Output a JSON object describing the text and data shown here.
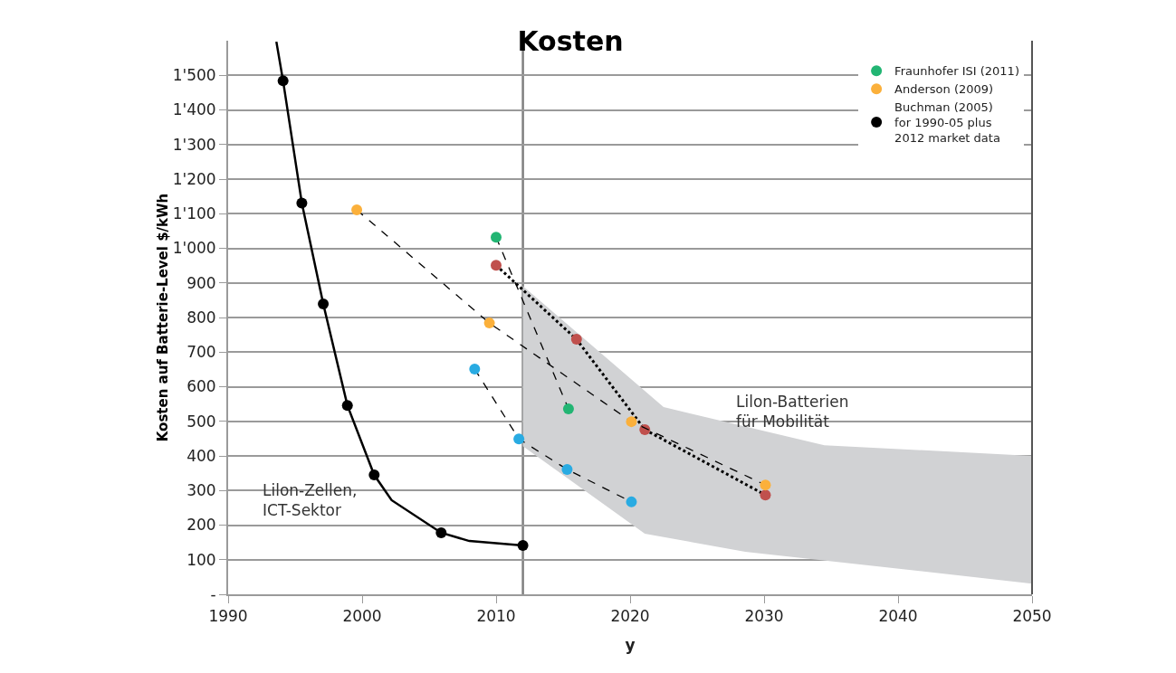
{
  "chart_data": {
    "type": "scatter",
    "title": "Kosten",
    "xlabel": "y",
    "ylabel": "Kosten auf Batterie-Level $/kWh",
    "xlim": [
      1990,
      2050
    ],
    "xticks": [
      1990,
      2000,
      2010,
      2020,
      2030,
      2040,
      2050
    ],
    "ylim": [
      0,
      1600
    ],
    "yticks": [
      {
        "value": 0,
        "label": "-"
      },
      100,
      200,
      300,
      400,
      500,
      600,
      700,
      800,
      900,
      {
        "value": 1000,
        "label": "1'000"
      },
      {
        "value": 1100,
        "label": "1'100"
      },
      {
        "value": 1200,
        "label": "1'200"
      },
      {
        "value": 1300,
        "label": "1'300"
      },
      {
        "value": 1400,
        "label": "1'400"
      },
      {
        "value": 1500,
        "label": "1'500"
      }
    ],
    "grid": "y",
    "legend": "top right",
    "marker": "circle",
    "series": [
      {
        "type": "area",
        "marker": "none",
        "color": "#d1d2d4",
        "x": [
          2012,
          2022.5,
          2034.5,
          2050,
          2050,
          2028.6,
          2021.1,
          2012,
          2012
        ],
        "values": [
          891,
          541,
          431,
          400,
          31,
          123,
          175,
          428,
          891
        ]
      },
      {
        "type": "line",
        "color": "#000000",
        "line_style": "solid",
        "marker": "none",
        "x": [
          1993.6,
          1994.1,
          1995.5,
          1997.1,
          1998.9,
          2000.9,
          2002.2,
          2005.9,
          2008,
          2012.0
        ],
        "values": [
          1597,
          1484,
          1131,
          839,
          546,
          345,
          272,
          178,
          154,
          141
        ]
      },
      {
        "type": "line",
        "color": "#c0504d",
        "line_style": "dotted",
        "x": [
          2010.0,
          2016.0,
          2021.1,
          2030.1
        ],
        "values": [
          951,
          737,
          476,
          287
        ]
      },
      {
        "type": "line",
        "color": "#29abe2",
        "line_style": "dashed",
        "x": [
          2008.4,
          2011.7,
          2015.3,
          2020.1
        ],
        "values": [
          651,
          449,
          361,
          267
        ]
      },
      {
        "type": "line",
        "name": "Fraunhofer ISI (2011)",
        "color": "#22b573",
        "line_style": "dashed",
        "x": [
          2010.0,
          2015.4
        ],
        "values": [
          1032,
          536
        ]
      },
      {
        "type": "line",
        "name": "Anderson (2009)",
        "color": "#fbb03b",
        "line_style": "dashed",
        "x": [
          1999.6,
          2009.5,
          2020.1,
          2030.1
        ],
        "values": [
          1111,
          784,
          499,
          316
        ]
      },
      {
        "name": "Buchman (2005)\nfor 1990-05 plus\n2012 market data",
        "color": "#000000",
        "x": [
          1994.1,
          1995.5,
          1997.1,
          1998.9,
          2000.9,
          2005.9,
          2012.0
        ],
        "values": [
          1484,
          1131,
          839,
          546,
          345,
          178,
          141
        ]
      }
    ],
    "ref_lines": [
      {
        "axis": "x",
        "value": 2012,
        "color": "#808080"
      }
    ],
    "annotations": [
      "Lilon-Zellen,\nICT-Sektor",
      "Lilon-Batterien\nfür Mobilität"
    ]
  }
}
